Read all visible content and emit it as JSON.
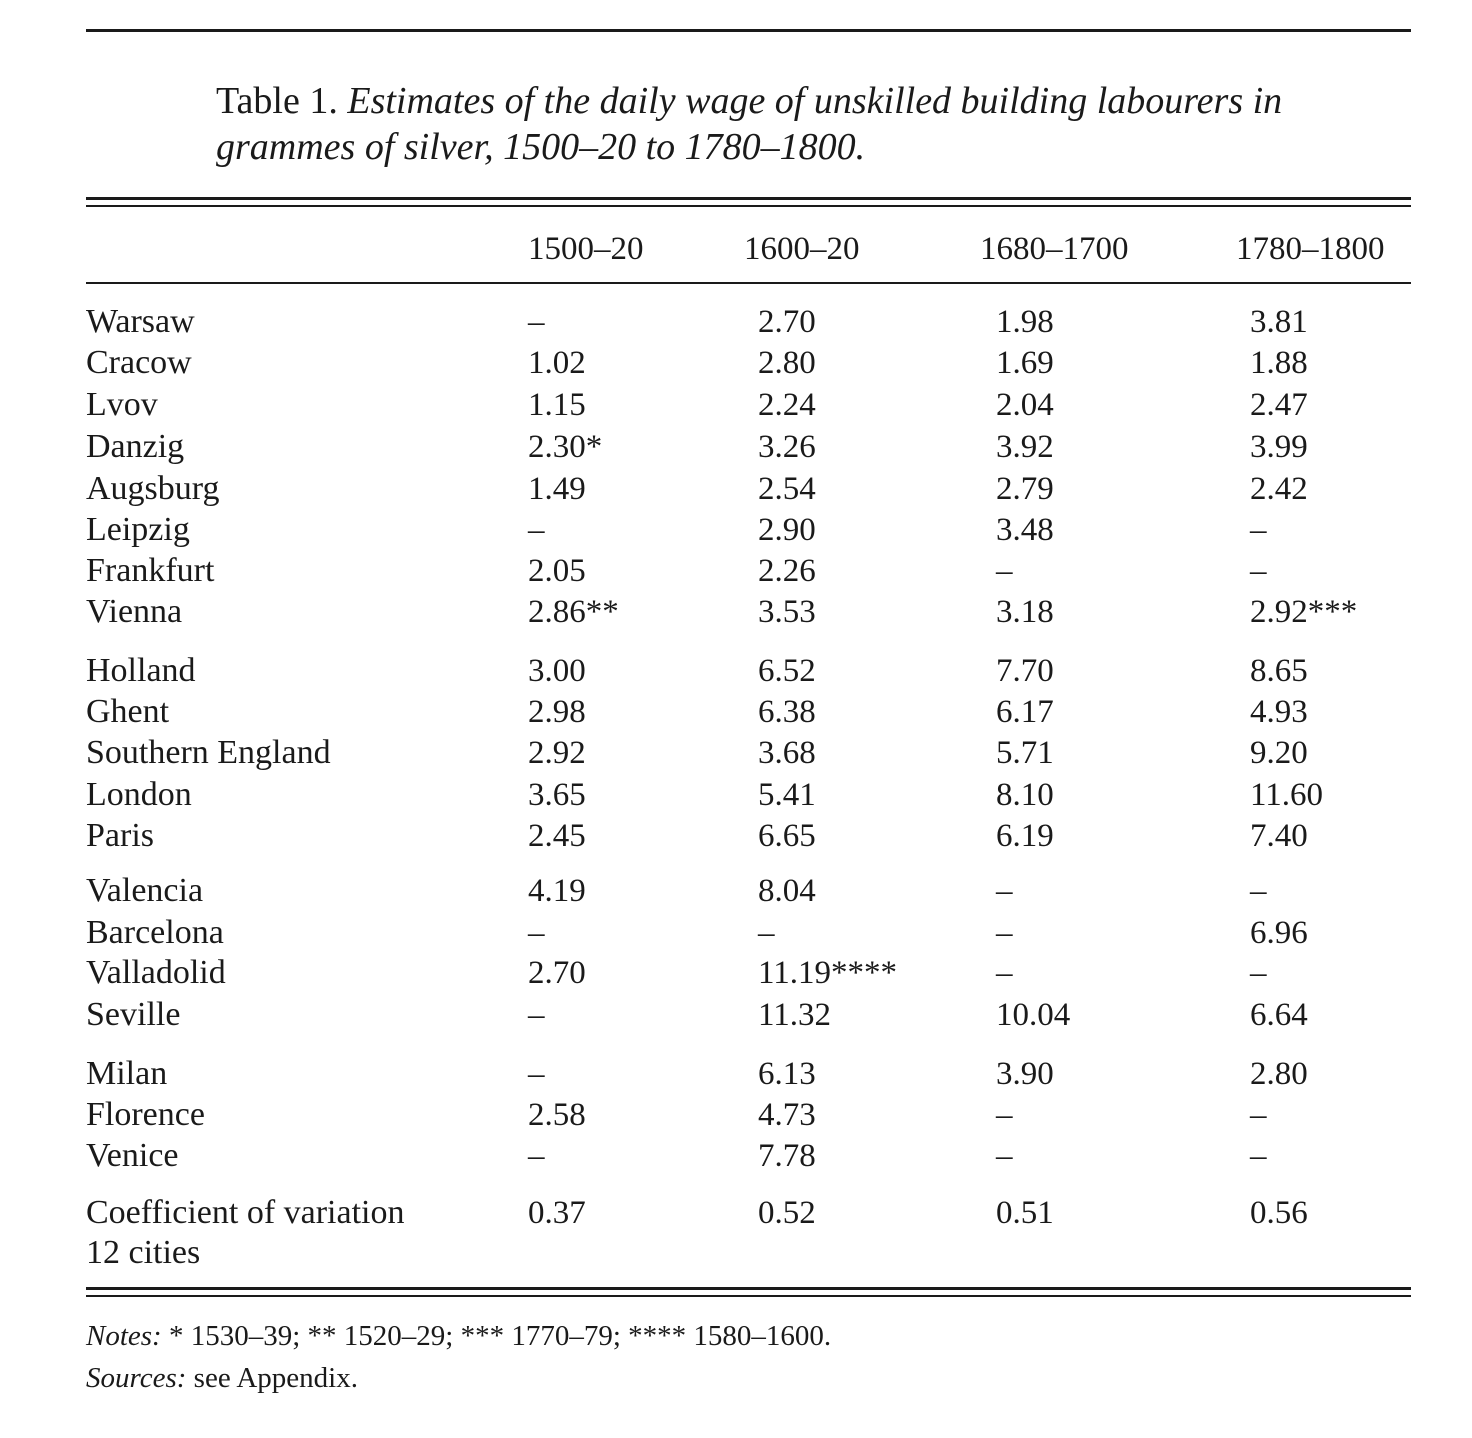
{
  "caption": {
    "label": "Table 1.",
    "description": "Estimates of the daily wage of unskilled building labourers in grammes of silver, 1500–20 to 1780–1800."
  },
  "columns": [
    "1500–20",
    "1600–20",
    "1680–1700",
    "1780–1800"
  ],
  "rows": [
    {
      "label": "Warsaw",
      "values": [
        "–",
        "2.70",
        "1.98",
        "3.81"
      ]
    },
    {
      "label": "Cracow",
      "values": [
        "1.02",
        "2.80",
        "1.69",
        "1.88"
      ]
    },
    {
      "label": "Lvov",
      "values": [
        "1.15",
        "2.24",
        "2.04",
        "2.47"
      ]
    },
    {
      "label": "Danzig",
      "values": [
        "2.30*",
        "3.26",
        "3.92",
        "3.99"
      ]
    },
    {
      "label": "Augsburg",
      "values": [
        "1.49",
        "2.54",
        "2.79",
        "2.42"
      ]
    },
    {
      "label": "Leipzig",
      "values": [
        "–",
        "2.90",
        "3.48",
        "–"
      ]
    },
    {
      "label": "Frankfurt",
      "values": [
        "2.05",
        "2.26",
        "–",
        "–"
      ]
    },
    {
      "label": "Vienna",
      "values": [
        "2.86**",
        "3.53",
        "3.18",
        "2.92***"
      ]
    },
    {
      "label": "Holland",
      "values": [
        "3.00",
        "6.52",
        "7.70",
        "8.65"
      ]
    },
    {
      "label": "Ghent",
      "values": [
        "2.98",
        "6.38",
        "6.17",
        "4.93"
      ]
    },
    {
      "label": "Southern England",
      "values": [
        "2.92",
        "3.68",
        "5.71",
        "9.20"
      ]
    },
    {
      "label": "London",
      "values": [
        "3.65",
        "5.41",
        "8.10",
        "11.60"
      ]
    },
    {
      "label": "Paris",
      "values": [
        "2.45",
        "6.65",
        "6.19",
        "7.40"
      ]
    },
    {
      "label": "Valencia",
      "values": [
        "4.19",
        "8.04",
        "–",
        "–"
      ]
    },
    {
      "label": "Barcelona",
      "values": [
        "–",
        "–",
        "–",
        "6.96"
      ]
    },
    {
      "label": "Valladolid",
      "values": [
        "2.70",
        "11.19****",
        "–",
        "–"
      ]
    },
    {
      "label": "Seville",
      "values": [
        "–",
        "11.32",
        "10.04",
        "6.64"
      ]
    },
    {
      "label": "Milan",
      "values": [
        "–",
        "6.13",
        "3.90",
        "2.80"
      ]
    },
    {
      "label": "Florence",
      "values": [
        "2.58",
        "4.73",
        "–",
        "–"
      ]
    },
    {
      "label": "Venice",
      "values": [
        "–",
        "7.78",
        "–",
        "–"
      ]
    },
    {
      "label": "Coefficient of variation",
      "label_line2": "12 cities",
      "values": [
        "0.37",
        "0.52",
        "0.51",
        "0.56"
      ]
    }
  ],
  "notes": {
    "notes_lead": "Notes:",
    "notes_text": "* 1530–39; ** 1520–29; *** 1770–79; **** 1580–1600.",
    "sources_lead": "Sources:",
    "sources_text": "see Appendix."
  }
}
